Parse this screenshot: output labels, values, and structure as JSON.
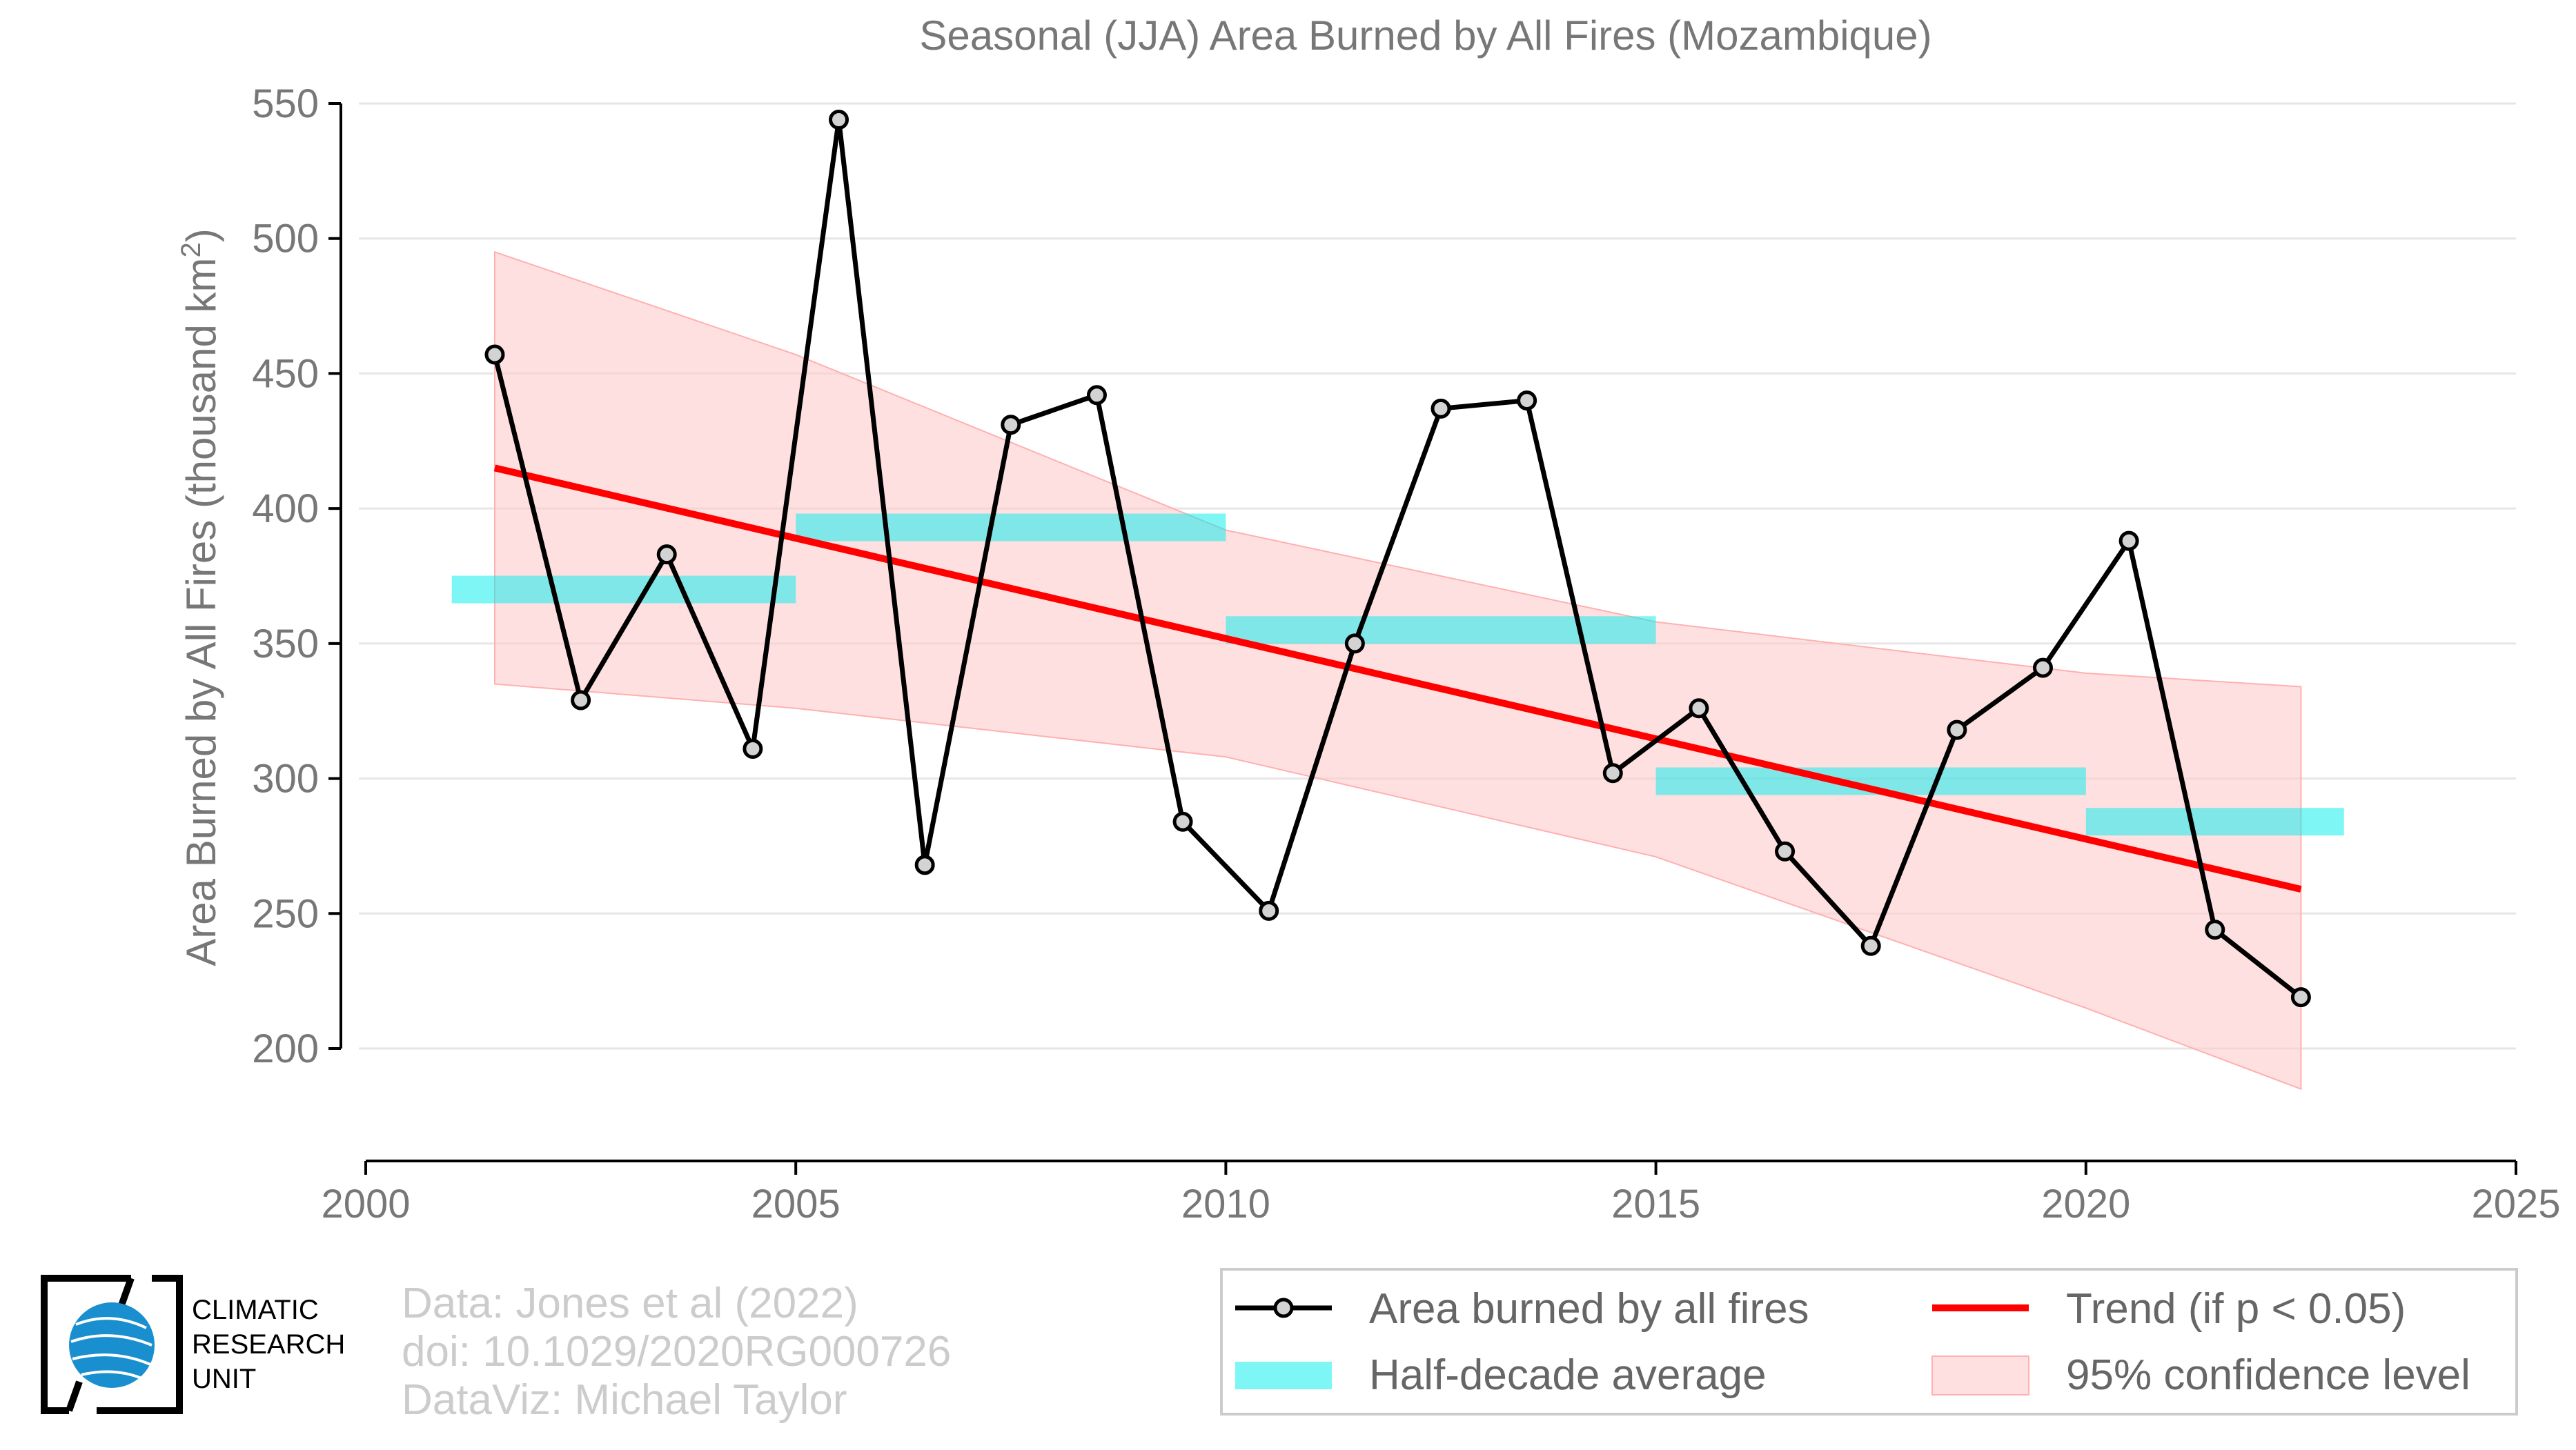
{
  "chart_data": {
    "type": "line",
    "title": "Seasonal (JJA) Area Burned by All Fires (Mozambique)",
    "xlabel": "",
    "ylabel": "Area Burned by All Fires (thousand km",
    "ylabel_superscript": "2",
    "ylabel_close": ")",
    "xlim": [
      2000,
      2025
    ],
    "ylim": [
      180,
      560
    ],
    "x_ticks": [
      2000,
      2005,
      2010,
      2015,
      2020,
      2025
    ],
    "y_ticks": [
      200,
      250,
      300,
      350,
      400,
      450,
      500,
      550
    ],
    "grid": "horizontal",
    "legend_position": "bottom-right",
    "series": [
      {
        "name": "Area burned by all fires",
        "kind": "line-markers",
        "color": "#000000",
        "x": [
          2001.5,
          2002.5,
          2003.5,
          2004.5,
          2005.5,
          2006.5,
          2007.5,
          2008.5,
          2009.5,
          2010.5,
          2011.5,
          2012.5,
          2013.5,
          2014.5,
          2015.5,
          2016.5,
          2017.5,
          2018.5,
          2019.5,
          2020.5,
          2021.5,
          2022.5
        ],
        "y": [
          457,
          329,
          383,
          311,
          544,
          268,
          431,
          442,
          284,
          251,
          350,
          437,
          440,
          302,
          326,
          273,
          238,
          318,
          341,
          388,
          244,
          219
        ]
      },
      {
        "name": "Half-decade average",
        "kind": "bands",
        "color": "#00eeee",
        "segments": [
          {
            "x0": 2001,
            "x1": 2005,
            "y": 370
          },
          {
            "x0": 2005,
            "x1": 2010,
            "y": 393
          },
          {
            "x0": 2010,
            "x1": 2015,
            "y": 355
          },
          {
            "x0": 2015,
            "x1": 2020,
            "y": 299
          },
          {
            "x0": 2020,
            "x1": 2023,
            "y": 284
          }
        ]
      },
      {
        "name": "Trend (if p < 0.05)",
        "kind": "line",
        "color": "#ff0000",
        "x": [
          2001.5,
          2022.5
        ],
        "y": [
          415,
          259
        ]
      },
      {
        "name": "95% confidence level",
        "kind": "area",
        "color": "#ffcccc",
        "x": [
          2001.5,
          2005,
          2010,
          2015,
          2020,
          2022.5
        ],
        "upper": [
          495,
          457,
          392,
          358,
          339,
          334
        ],
        "lower": [
          335,
          326,
          308,
          271,
          215,
          185
        ]
      }
    ]
  },
  "credits": {
    "line1": "Data: Jones et al (2022)",
    "line2": "doi: 10.1029/2020RG000726",
    "line3": "DataViz: Michael Taylor"
  },
  "logo": {
    "line1": "CLIMATIC",
    "line2": "RESEARCH",
    "line3": "UNIT",
    "icon": "globe-icon",
    "globe_color": "#1a8fd0"
  }
}
